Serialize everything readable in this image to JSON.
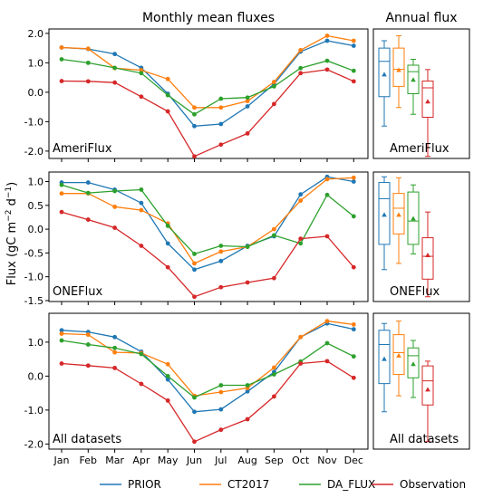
{
  "titles": {
    "monthly": "Monthly mean fluxes",
    "annual": "Annual flux"
  },
  "ylabel_text": "Flux (gC m",
  "ylabel_sup1": "−2",
  "ylabel_mid": " d",
  "ylabel_sup2": "−1",
  "ylabel_end": ")",
  "colors": {
    "PRIOR": "#1f77b4",
    "CT2017": "#ff7f0e",
    "DA_FLUX": "#2ca02c",
    "Observation": "#d62728"
  },
  "legend": [
    "PRIOR",
    "CT2017",
    "DA_FLUX",
    "Observation"
  ],
  "months": [
    "Jan",
    "Feb",
    "Mar",
    "Apr",
    "May",
    "Jun",
    "Jul",
    "Aug",
    "Sep",
    "Oct",
    "Nov",
    "Dec"
  ],
  "chart_data": [
    {
      "type": "line",
      "panel_label": "AmeriFlux",
      "ylim": [
        -2.25,
        2.15
      ],
      "yticks": [
        -2.0,
        -1.0,
        0.0,
        1.0,
        2.0
      ],
      "ytick_labels": [
        "-2.0",
        "-1.0",
        "0.0",
        "1.0",
        "2.0"
      ],
      "series": [
        {
          "name": "PRIOR",
          "values": [
            1.52,
            1.47,
            1.3,
            0.83,
            -0.05,
            -1.15,
            -1.08,
            -0.48,
            0.28,
            1.38,
            1.75,
            1.58
          ]
        },
        {
          "name": "CT2017",
          "values": [
            1.52,
            1.48,
            0.82,
            0.75,
            0.45,
            -0.52,
            -0.52,
            -0.3,
            0.35,
            1.43,
            1.92,
            1.75
          ]
        },
        {
          "name": "DA_FLUX",
          "values": [
            1.12,
            1.0,
            0.83,
            0.65,
            -0.1,
            -0.75,
            -0.22,
            -0.18,
            0.2,
            0.82,
            1.07,
            0.73
          ]
        },
        {
          "name": "Observation",
          "values": [
            0.38,
            0.37,
            0.33,
            -0.15,
            -0.65,
            -2.18,
            -1.78,
            -1.4,
            -0.4,
            0.65,
            0.77,
            0.37
          ]
        }
      ],
      "annual_box": [
        {
          "name": "PRIOR",
          "whisker_low": -1.15,
          "q1": -0.15,
          "median": 1.05,
          "q3": 1.5,
          "whisker_high": 1.75,
          "mean": 0.6
        },
        {
          "name": "CT2017",
          "whisker_low": -0.52,
          "q1": 0.2,
          "median": 0.78,
          "q3": 1.5,
          "whisker_high": 1.92,
          "mean": 0.75
        },
        {
          "name": "DA_FLUX",
          "whisker_low": -0.75,
          "q1": -0.05,
          "median": 0.7,
          "q3": 0.92,
          "whisker_high": 1.12,
          "mean": 0.42
        },
        {
          "name": "Observation",
          "whisker_low": -2.18,
          "q1": -0.85,
          "median": 0.15,
          "q3": 0.38,
          "whisker_high": 0.77,
          "mean": -0.32
        }
      ]
    },
    {
      "type": "line",
      "panel_label": "ONEFlux",
      "ylim": [
        -1.52,
        1.2
      ],
      "yticks": [
        -1.5,
        -1.0,
        -0.5,
        0.0,
        0.5,
        1.0
      ],
      "ytick_labels": [
        "-1.5",
        "-1.0",
        "-0.5",
        "0.0",
        "0.5",
        "1.0"
      ],
      "series": [
        {
          "name": "PRIOR",
          "values": [
            0.98,
            0.98,
            0.83,
            0.55,
            -0.3,
            -0.85,
            -0.67,
            -0.35,
            -0.15,
            0.73,
            1.1,
            1.0
          ]
        },
        {
          "name": "CT2017",
          "values": [
            0.75,
            0.75,
            0.47,
            0.4,
            0.12,
            -0.72,
            -0.47,
            -0.37,
            0.0,
            0.6,
            1.05,
            1.08
          ]
        },
        {
          "name": "DA_FLUX",
          "values": [
            0.93,
            0.76,
            0.8,
            0.83,
            0.07,
            -0.52,
            -0.35,
            -0.37,
            -0.13,
            -0.3,
            0.72,
            0.27
          ]
        },
        {
          "name": "Observation",
          "values": [
            0.36,
            0.2,
            0.03,
            -0.35,
            -0.8,
            -1.42,
            -1.22,
            -1.12,
            -1.03,
            -0.2,
            -0.15,
            -0.8
          ]
        }
      ],
      "annual_box": [
        {
          "name": "PRIOR",
          "whisker_low": -0.85,
          "q1": -0.32,
          "median": 0.64,
          "q3": 0.98,
          "whisker_high": 1.1,
          "mean": 0.3
        },
        {
          "name": "CT2017",
          "whisker_low": -0.72,
          "q1": -0.1,
          "median": 0.44,
          "q3": 0.75,
          "whisker_high": 1.08,
          "mean": 0.3
        },
        {
          "name": "DA_FLUX",
          "whisker_low": -0.52,
          "q1": -0.32,
          "median": 0.17,
          "q3": 0.78,
          "whisker_high": 0.93,
          "mean": 0.22
        },
        {
          "name": "Observation",
          "whisker_low": -1.42,
          "q1": -1.05,
          "median": -0.57,
          "q3": -0.18,
          "whisker_high": 0.36,
          "mean": -0.55
        }
      ]
    },
    {
      "type": "line",
      "panel_label": "All datasets",
      "ylim": [
        -2.15,
        1.85
      ],
      "yticks": [
        -2.0,
        -1.0,
        0.0,
        1.0
      ],
      "ytick_labels": [
        "-2.0",
        "-1.0",
        "0.0",
        "1.0"
      ],
      "series": [
        {
          "name": "PRIOR",
          "values": [
            1.35,
            1.3,
            1.15,
            0.72,
            -0.1,
            -1.05,
            -0.98,
            -0.45,
            0.12,
            1.15,
            1.55,
            1.38
          ]
        },
        {
          "name": "CT2017",
          "values": [
            1.25,
            1.22,
            0.7,
            0.68,
            0.35,
            -0.58,
            -0.47,
            -0.35,
            0.25,
            1.15,
            1.62,
            1.52
          ]
        },
        {
          "name": "DA_FLUX",
          "values": [
            1.05,
            0.93,
            0.83,
            0.65,
            0.0,
            -0.63,
            -0.27,
            -0.27,
            0.05,
            0.43,
            0.97,
            0.58
          ]
        },
        {
          "name": "Observation",
          "values": [
            0.37,
            0.31,
            0.24,
            -0.23,
            -0.72,
            -1.93,
            -1.58,
            -1.27,
            -0.6,
            0.37,
            0.44,
            -0.05
          ]
        }
      ],
      "annual_box": [
        {
          "name": "PRIOR",
          "whisker_low": -1.05,
          "q1": -0.22,
          "median": 0.93,
          "q3": 1.35,
          "whisker_high": 1.55,
          "mean": 0.5
        },
        {
          "name": "CT2017",
          "whisker_low": -0.58,
          "q1": 0.05,
          "median": 0.69,
          "q3": 1.22,
          "whisker_high": 1.62,
          "mean": 0.6
        },
        {
          "name": "DA_FLUX",
          "whisker_low": -0.63,
          "q1": -0.05,
          "median": 0.6,
          "q3": 0.83,
          "whisker_high": 1.05,
          "mean": 0.35
        },
        {
          "name": "Observation",
          "whisker_low": -1.93,
          "q1": -0.85,
          "median": -0.14,
          "q3": 0.3,
          "whisker_high": 0.44,
          "mean": -0.4
        }
      ]
    }
  ]
}
